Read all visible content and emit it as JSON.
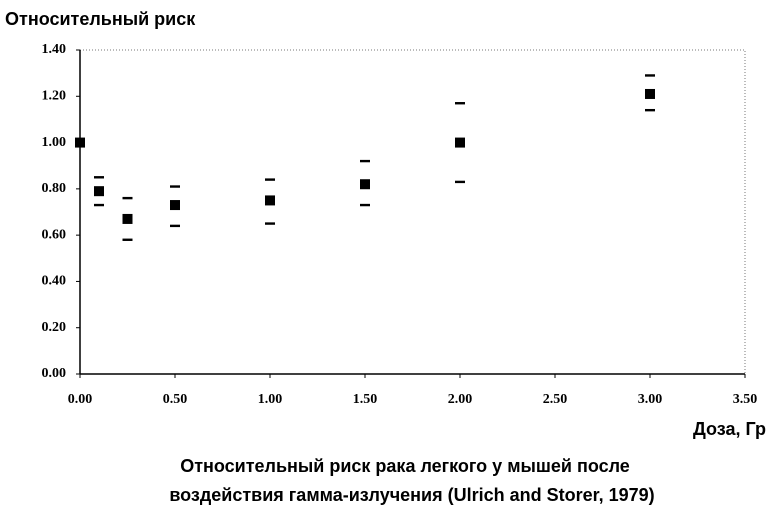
{
  "chart_data": {
    "type": "scatter",
    "y_label": "Относительный риск",
    "x_label": "Доза, Гр",
    "caption": [
      "Относительный риск рака легкого у мышей после",
      "воздействия гамма-излучения   (Ulrich and Storer, 1979)"
    ],
    "x": [
      0,
      0.1,
      0.25,
      0.5,
      1.0,
      1.5,
      2.0,
      3.0
    ],
    "series": [
      {
        "color": "#000000",
        "values": [
          1.0,
          0.79,
          0.67,
          0.73,
          0.75,
          0.82,
          1.0,
          1.21
        ],
        "upper": [
          null,
          0.85,
          0.76,
          0.81,
          0.84,
          0.92,
          1.17,
          1.29
        ],
        "lower": [
          null,
          0.73,
          0.58,
          0.64,
          0.65,
          0.73,
          0.83,
          1.14
        ]
      }
    ],
    "xlim": [
      0,
      3.5
    ],
    "xticks": [
      {
        "value": 0,
        "label": "0.00"
      },
      {
        "value": 0.5,
        "label": "0.50"
      },
      {
        "value": 1,
        "label": "1.00"
      },
      {
        "value": 1.5,
        "label": "1.50"
      },
      {
        "value": 2,
        "label": "2.00"
      },
      {
        "value": 2.5,
        "label": "2.50"
      },
      {
        "value": 3,
        "label": "3.00"
      },
      {
        "value": 3.5,
        "label": "3.50"
      }
    ],
    "ylim": [
      0,
      1.4
    ],
    "yticks": [
      {
        "value": 0,
        "label": "0.00"
      },
      {
        "value": 0.2,
        "label": "0.20"
      },
      {
        "value": 0.4,
        "label": "0.40"
      },
      {
        "value": 0.6,
        "label": "0.60"
      },
      {
        "value": 0.8,
        "label": "0.80"
      },
      {
        "value": 1.0,
        "label": "1.00"
      },
      {
        "value": 1.2,
        "label": "1.20"
      },
      {
        "value": 1.4,
        "label": "1.40"
      }
    ]
  }
}
